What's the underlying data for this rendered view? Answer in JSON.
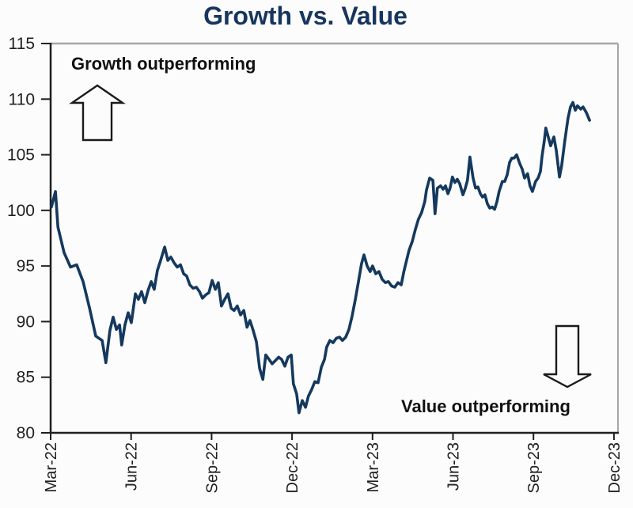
{
  "page": {
    "title": "Growth vs. Value"
  },
  "annotations": {
    "top_left": "Growth outperforming",
    "bottom_right": "Value outperforming"
  },
  "colors": {
    "line": "#15395E",
    "title": "#17365D",
    "axis": "#1f1f1f",
    "frame_gray": "#a6a6a6",
    "annotation_text": "#111111",
    "background": "#fcfcfc"
  },
  "chart_data": {
    "type": "line",
    "title": "Growth vs. Value",
    "xlabel": "",
    "ylabel": "",
    "grid": false,
    "legend_position": "none",
    "ylim": [
      80,
      115
    ],
    "xlim": [
      0,
      21.15
    ],
    "x_unit": "months since Mar-2022",
    "y_ticks": [
      80,
      85,
      90,
      95,
      100,
      105,
      110,
      115
    ],
    "x_tick_positions": [
      0,
      3,
      6,
      9,
      12,
      15,
      18,
      21
    ],
    "x_tick_labels": [
      "Mar-22",
      "Jun-22",
      "Sep-22",
      "Dec-22",
      "Mar-23",
      "Jun-23",
      "Sep-23",
      "Dec-23"
    ],
    "annotations": [
      {
        "text": "Growth outperforming",
        "position": "top-left",
        "arrow": "up"
      },
      {
        "text": "Value outperforming",
        "position": "bottom-right",
        "arrow": "down"
      }
    ],
    "series": [
      {
        "name": "Growth vs. Value",
        "color": "#15395E",
        "points": [
          [
            0.03,
            100.3
          ],
          [
            0.18,
            101.7
          ],
          [
            0.27,
            98.5
          ],
          [
            0.5,
            96.2
          ],
          [
            0.74,
            94.9
          ],
          [
            0.97,
            95.1
          ],
          [
            1.21,
            93.6
          ],
          [
            1.45,
            91.2
          ],
          [
            1.68,
            88.7
          ],
          [
            1.92,
            88.3
          ],
          [
            2.06,
            86.3
          ],
          [
            2.21,
            89.2
          ],
          [
            2.33,
            90.4
          ],
          [
            2.45,
            89.3
          ],
          [
            2.57,
            89.7
          ],
          [
            2.65,
            87.9
          ],
          [
            2.77,
            89.7
          ],
          [
            2.89,
            90.8
          ],
          [
            3.01,
            89.9
          ],
          [
            3.16,
            92.5
          ],
          [
            3.27,
            92.0
          ],
          [
            3.39,
            92.7
          ],
          [
            3.51,
            91.7
          ],
          [
            3.63,
            92.8
          ],
          [
            3.75,
            93.6
          ],
          [
            3.86,
            92.9
          ],
          [
            3.98,
            94.6
          ],
          [
            4.1,
            95.5
          ],
          [
            4.25,
            96.7
          ],
          [
            4.37,
            95.5
          ],
          [
            4.48,
            95.8
          ],
          [
            4.6,
            95.3
          ],
          [
            4.72,
            94.9
          ],
          [
            4.84,
            95.1
          ],
          [
            4.96,
            94.3
          ],
          [
            5.07,
            94.1
          ],
          [
            5.19,
            93.3
          ],
          [
            5.31,
            93.0
          ],
          [
            5.43,
            93.1
          ],
          [
            5.55,
            92.7
          ],
          [
            5.66,
            92.1
          ],
          [
            5.78,
            92.4
          ],
          [
            5.9,
            92.6
          ],
          [
            6.02,
            93.7
          ],
          [
            6.14,
            92.9
          ],
          [
            6.25,
            93.5
          ],
          [
            6.37,
            91.4
          ],
          [
            6.49,
            92.0
          ],
          [
            6.61,
            92.5
          ],
          [
            6.73,
            91.2
          ],
          [
            6.84,
            91.0
          ],
          [
            6.96,
            91.4
          ],
          [
            7.08,
            90.6
          ],
          [
            7.2,
            91.0
          ],
          [
            7.32,
            89.5
          ],
          [
            7.43,
            90.1
          ],
          [
            7.55,
            89.2
          ],
          [
            7.67,
            88.2
          ],
          [
            7.79,
            85.8
          ],
          [
            7.91,
            84.8
          ],
          [
            8.02,
            87.0
          ],
          [
            8.14,
            86.6
          ],
          [
            8.26,
            86.2
          ],
          [
            8.38,
            86.5
          ],
          [
            8.5,
            86.8
          ],
          [
            8.61,
            86.6
          ],
          [
            8.73,
            86.0
          ],
          [
            8.85,
            86.8
          ],
          [
            8.97,
            87.0
          ],
          [
            9.05,
            84.4
          ],
          [
            9.17,
            83.5
          ],
          [
            9.26,
            81.8
          ],
          [
            9.38,
            82.9
          ],
          [
            9.5,
            82.3
          ],
          [
            9.61,
            83.3
          ],
          [
            9.73,
            83.9
          ],
          [
            9.85,
            84.6
          ],
          [
            9.97,
            84.5
          ],
          [
            10.09,
            85.9
          ],
          [
            10.21,
            86.6
          ],
          [
            10.29,
            87.7
          ],
          [
            10.41,
            88.3
          ],
          [
            10.53,
            88.1
          ],
          [
            10.65,
            88.5
          ],
          [
            10.77,
            88.6
          ],
          [
            10.88,
            88.3
          ],
          [
            11.0,
            88.6
          ],
          [
            11.12,
            89.3
          ],
          [
            11.24,
            90.5
          ],
          [
            11.36,
            92.0
          ],
          [
            11.47,
            93.5
          ],
          [
            11.59,
            95.2
          ],
          [
            11.68,
            96.0
          ],
          [
            11.8,
            95.0
          ],
          [
            11.91,
            94.5
          ],
          [
            12.0,
            95.0
          ],
          [
            12.12,
            94.3
          ],
          [
            12.24,
            94.5
          ],
          [
            12.36,
            93.8
          ],
          [
            12.48,
            93.5
          ],
          [
            12.59,
            93.6
          ],
          [
            12.71,
            93.2
          ],
          [
            12.83,
            93.1
          ],
          [
            12.95,
            93.5
          ],
          [
            13.07,
            93.3
          ],
          [
            13.16,
            94.4
          ],
          [
            13.24,
            95.2
          ],
          [
            13.36,
            96.4
          ],
          [
            13.48,
            97.2
          ],
          [
            13.6,
            98.3
          ],
          [
            13.71,
            99.2
          ],
          [
            13.83,
            99.8
          ],
          [
            13.95,
            100.8
          ],
          [
            14.01,
            101.8
          ],
          [
            14.13,
            102.9
          ],
          [
            14.25,
            102.7
          ],
          [
            14.33,
            99.7
          ],
          [
            14.42,
            102.0
          ],
          [
            14.54,
            102.2
          ],
          [
            14.63,
            101.9
          ],
          [
            14.72,
            102.2
          ],
          [
            14.81,
            101.5
          ],
          [
            14.89,
            102.0
          ],
          [
            14.98,
            103.0
          ],
          [
            15.07,
            102.5
          ],
          [
            15.16,
            102.8
          ],
          [
            15.25,
            102.4
          ],
          [
            15.37,
            101.4
          ],
          [
            15.46,
            102.0
          ],
          [
            15.54,
            102.7
          ],
          [
            15.63,
            104.8
          ],
          [
            15.75,
            102.9
          ],
          [
            15.84,
            102.0
          ],
          [
            15.93,
            102.1
          ],
          [
            16.02,
            101.5
          ],
          [
            16.1,
            101.2
          ],
          [
            16.19,
            101.4
          ],
          [
            16.28,
            100.6
          ],
          [
            16.37,
            100.2
          ],
          [
            16.46,
            100.3
          ],
          [
            16.55,
            100.1
          ],
          [
            16.64,
            100.8
          ],
          [
            16.72,
            101.7
          ],
          [
            16.84,
            102.6
          ],
          [
            16.93,
            102.6
          ],
          [
            17.02,
            103.2
          ],
          [
            17.11,
            104.3
          ],
          [
            17.19,
            104.7
          ],
          [
            17.28,
            104.7
          ],
          [
            17.37,
            105.0
          ],
          [
            17.49,
            104.2
          ],
          [
            17.58,
            103.7
          ],
          [
            17.67,
            102.9
          ],
          [
            17.78,
            103.3
          ],
          [
            17.87,
            102.2
          ],
          [
            17.96,
            101.7
          ],
          [
            18.08,
            102.6
          ],
          [
            18.17,
            102.9
          ],
          [
            18.26,
            103.5
          ],
          [
            18.32,
            104.9
          ],
          [
            18.4,
            106.2
          ],
          [
            18.46,
            107.4
          ],
          [
            18.55,
            106.6
          ],
          [
            18.64,
            105.8
          ],
          [
            18.76,
            106.6
          ],
          [
            18.85,
            105.4
          ],
          [
            18.97,
            103.0
          ],
          [
            19.05,
            104.0
          ],
          [
            19.17,
            106.3
          ],
          [
            19.29,
            108.3
          ],
          [
            19.38,
            109.3
          ],
          [
            19.47,
            109.7
          ],
          [
            19.56,
            109.0
          ],
          [
            19.64,
            109.4
          ],
          [
            19.76,
            109.1
          ],
          [
            19.85,
            109.3
          ],
          [
            19.97,
            108.8
          ],
          [
            20.09,
            108.1
          ]
        ]
      }
    ]
  }
}
